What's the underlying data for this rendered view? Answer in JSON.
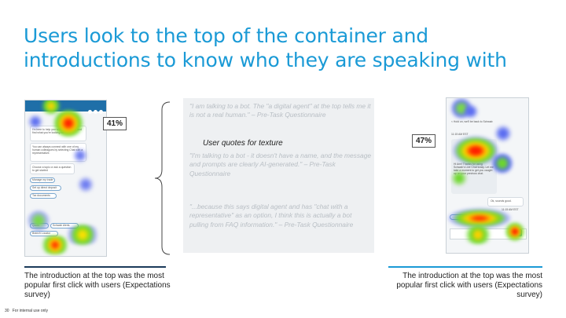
{
  "slide": {
    "title": "Users look to the top of the container and introductions to know who they are speaking with",
    "page_number": "30",
    "footer_note": "For internal use only"
  },
  "left_panel": {
    "percentage": "41%",
    "caption": "The introduction at the top was the most popular first click with users (Expectations survey)",
    "chat_lines": [
      "I'm here to help you with simple tasks and find what you're looking for.",
      "You can always connect with one of my human colleagues by selecting Chat with a representative.",
      "Choose a topic or ask a question to get started"
    ],
    "chips": [
      "Manage my trade",
      "Set up direct deposit",
      "Tax documents"
    ],
    "bottom_chips": [
      "Quote",
      "Schwab Alerts",
      "Branch Locator"
    ]
  },
  "right_panel": {
    "percentage": "47%",
    "caption": "The introduction at the top was the most popular first click with users (Expectations survey)",
    "chat_lines": [
      "< Hold on, we'll be back to Schwab",
      "Hi Ann! Thanks for using Schwab's Live Chat today. Let me take a moment to get you caught up on your previous chat.",
      "Ok, sounds good."
    ],
    "timestamps": [
      "11:15 AM EST",
      "11:15 AM EST"
    ],
    "send_label": "Send"
  },
  "quotes": {
    "label": "User quotes for texture",
    "items": [
      "\"I am talking to a bot. The \"a digital agent\" at the top tells me it is not a real human.\" – Pre-Task Questionnaire",
      "\"I'm talking to a bot - it doesn't have a name, and the message and prompts are clearly AI-generated.\" – Pre-Task Questionnaire",
      "\"...because this says digital agent and has \"chat with a representative\" as an option, I think this is actually a bot pulling from FAQ information.\" – Pre-Task Questionnaire"
    ]
  },
  "colors": {
    "title": "#1a9ad6",
    "left_underline": "#1b3a5a",
    "right_underline": "#1a9ad6"
  }
}
